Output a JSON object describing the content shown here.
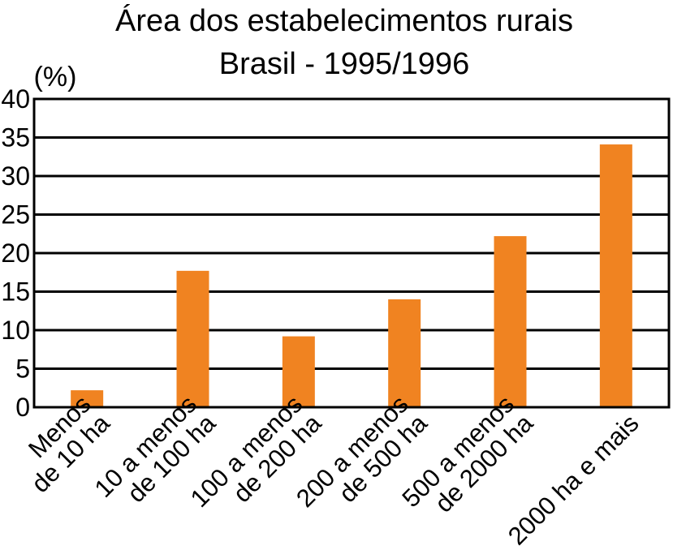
{
  "chart_data": {
    "type": "bar",
    "title": "Área dos estabelecimentos rurais",
    "subtitle": "Brasil - 1995/1996",
    "ylabel": "(%)",
    "xlabel": "",
    "ylim": [
      0,
      40
    ],
    "yticks": [
      0,
      5,
      10,
      15,
      20,
      25,
      30,
      35,
      40
    ],
    "grid": true,
    "categories": [
      [
        "Menos",
        "de 10 ha"
      ],
      [
        "10 a menos",
        "de 100 ha"
      ],
      [
        "100 a menos",
        "de 200 ha"
      ],
      [
        "200 a menos",
        "de 500 ha"
      ],
      [
        "500 a menos",
        "de 2000 ha"
      ],
      [
        "2000 ha e mais"
      ]
    ],
    "values": [
      2.2,
      17.7,
      9.2,
      14.0,
      22.2,
      34.1
    ],
    "bar_color": "#F08321",
    "grid_color": "#000000"
  }
}
